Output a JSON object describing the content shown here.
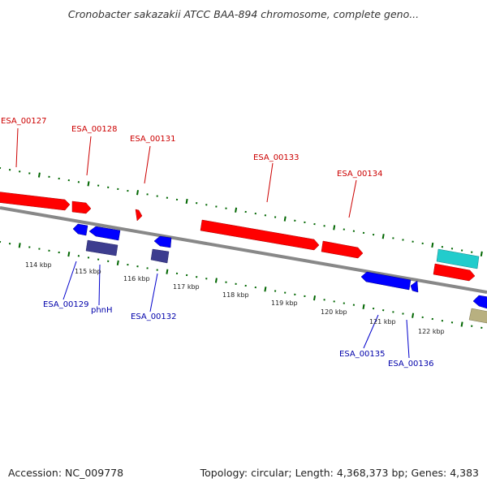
{
  "header": {
    "title": "Cronobacter sakazakii ATCC BAA-894 chromosome, complete geno..."
  },
  "footer": {
    "accession": "Accession: NC_009778",
    "summary": "Topology: circular; Length: 4,368,373 bp; Genes: 4,383"
  },
  "colors": {
    "forward_gene": "#ff0000",
    "reverse_gene": "#0000ff",
    "reverse_gene_dark": "#3d3d8f",
    "rna_cyan": "#22cccc",
    "misc_tan": "#b8b080",
    "backbone": "#888888",
    "tick_green": "#006600"
  },
  "forward_labels": [
    "ESA_00127",
    "ESA_00128",
    "ESA_00131",
    "ESA_00133",
    "ESA_00134"
  ],
  "reverse_labels": [
    "ESA_00129",
    "phnH",
    "ESA_00132",
    "ESA_00135",
    "ESA_00136"
  ],
  "scale_labels": [
    "114 kbp",
    "115 kbp",
    "116 kbp",
    "117 kbp",
    "118 kbp",
    "119 kbp",
    "120 kbp",
    "121 kbp",
    "122 kbp"
  ]
}
